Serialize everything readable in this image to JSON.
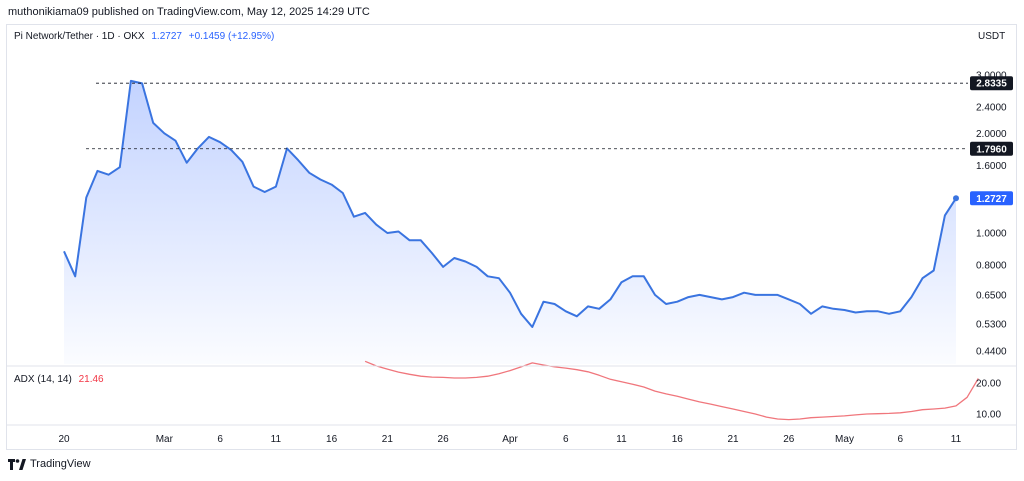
{
  "header": {
    "published": "muthonikiama09 published on TradingView.com, May 12, 2025 14:29 UTC"
  },
  "legend": {
    "symbol": "Pi Network/Tether · 1D · OKX",
    "price": "1.2727",
    "change": "+0.1459 (+12.95%)",
    "currency": "USDT"
  },
  "adx": {
    "label": "ADX (14, 14)",
    "value": "21.46"
  },
  "footer": {
    "brand": "TradingView"
  },
  "colors": {
    "price_line": "#3a74e0",
    "adx_line": "#f0767c",
    "badge_dark": "#131722",
    "badge_blue": "#2962ff"
  },
  "chart_data": [
    {
      "type": "area",
      "title": "Pi Network/Tether · 1D · OKX",
      "scale": "log",
      "y_ticks": [
        3.0,
        2.4,
        2.0,
        1.6,
        1.0,
        0.8,
        0.65,
        0.53,
        0.44
      ],
      "y_tick_labels": [
        "3.0000",
        "2.4000",
        "2.0000",
        "1.6000",
        "1.0000",
        "0.8000",
        "0.6500",
        "0.5300",
        "0.4400"
      ],
      "x_tick_labels": [
        {
          "label": "20",
          "index": 0
        },
        {
          "label": "Mar",
          "index": 9
        },
        {
          "label": "6",
          "index": 14
        },
        {
          "label": "11",
          "index": 19
        },
        {
          "label": "16",
          "index": 24
        },
        {
          "label": "21",
          "index": 29
        },
        {
          "label": "26",
          "index": 34
        },
        {
          "label": "Apr",
          "index": 40
        },
        {
          "label": "6",
          "index": 45
        },
        {
          "label": "11",
          "index": 50
        },
        {
          "label": "16",
          "index": 55
        },
        {
          "label": "21",
          "index": 60
        },
        {
          "label": "26",
          "index": 65
        },
        {
          "label": "May",
          "index": 70
        },
        {
          "label": "6",
          "index": 75
        },
        {
          "label": "11",
          "index": 80
        }
      ],
      "values": [
        0.88,
        0.74,
        1.28,
        1.54,
        1.5,
        1.58,
        2.88,
        2.83,
        2.15,
        2.0,
        1.9,
        1.63,
        1.8,
        1.95,
        1.88,
        1.78,
        1.64,
        1.38,
        1.33,
        1.38,
        1.8,
        1.66,
        1.52,
        1.45,
        1.4,
        1.32,
        1.12,
        1.15,
        1.06,
        1.0,
        1.01,
        0.95,
        0.95,
        0.87,
        0.79,
        0.84,
        0.82,
        0.79,
        0.74,
        0.73,
        0.66,
        0.57,
        0.52,
        0.62,
        0.61,
        0.58,
        0.56,
        0.6,
        0.59,
        0.63,
        0.71,
        0.74,
        0.74,
        0.65,
        0.61,
        0.62,
        0.64,
        0.65,
        0.64,
        0.63,
        0.64,
        0.66,
        0.65,
        0.65,
        0.65,
        0.63,
        0.61,
        0.57,
        0.6,
        0.59,
        0.585,
        0.575,
        0.58,
        0.58,
        0.57,
        0.58,
        0.64,
        0.73,
        0.77,
        1.13,
        1.2727
      ],
      "price_lines": [
        {
          "value": 2.8335,
          "label": "2.8335"
        },
        {
          "value": 1.796,
          "label": "1.7960"
        }
      ],
      "last_value_label": "1.2727",
      "grid": false
    },
    {
      "type": "line",
      "title": "ADX (14, 14)",
      "y_ticks": [
        20.0,
        10.0
      ],
      "y_tick_labels": [
        "20.00",
        "10.00"
      ],
      "start_index": 27,
      "values": [
        27.0,
        25.5,
        24.5,
        23.5,
        22.8,
        22.2,
        21.9,
        21.8,
        21.6,
        21.6,
        21.8,
        22.2,
        23.0,
        24.0,
        25.2,
        26.5,
        25.8,
        25.2,
        24.8,
        24.3,
        23.6,
        22.5,
        21.2,
        20.4,
        19.6,
        18.7,
        17.4,
        16.5,
        15.7,
        14.8,
        13.9,
        13.2,
        12.4,
        11.6,
        10.8,
        10.0,
        9.0,
        8.4,
        8.2,
        8.4,
        8.8,
        9.0,
        9.2,
        9.4,
        9.7,
        10.0,
        10.1,
        10.2,
        10.4,
        10.8,
        11.4,
        11.6,
        11.9,
        12.6,
        15.4,
        21.46
      ]
    }
  ]
}
